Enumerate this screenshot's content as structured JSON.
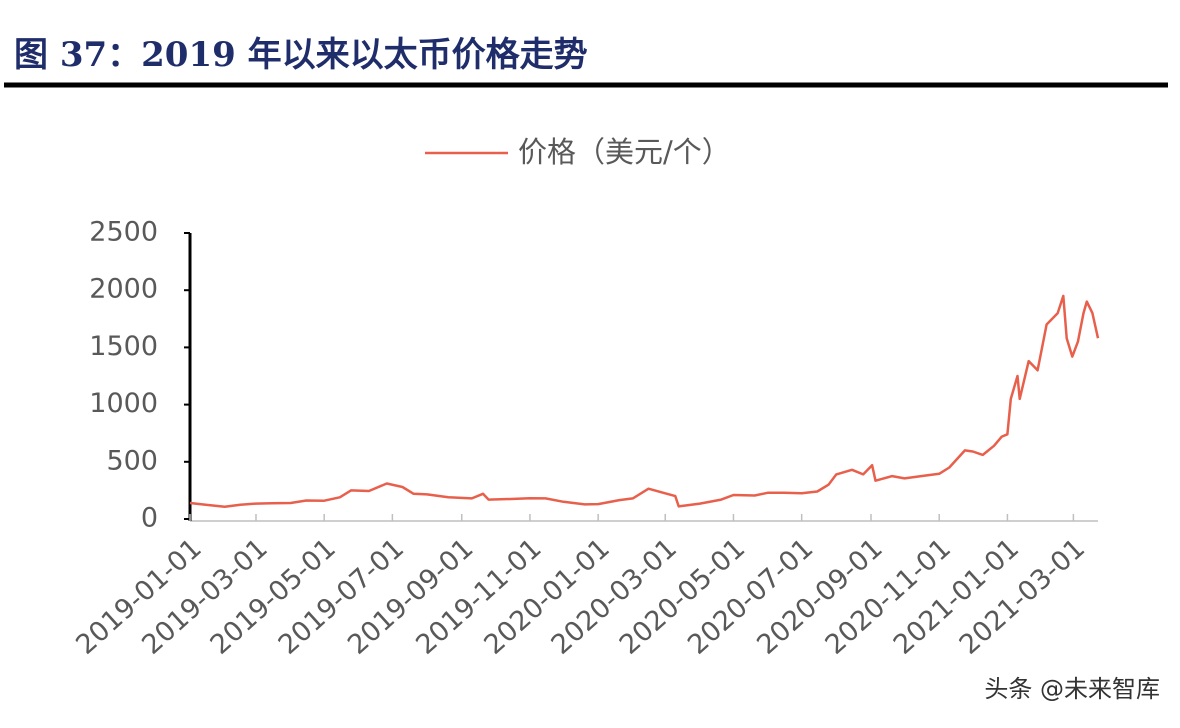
{
  "chart_data": {
    "type": "line",
    "title": "图 37：2019 年以来以太币价格走势",
    "watermark": "头条 @未来智库",
    "x": [
      "2019-01-01",
      "2019-01-15",
      "2019-02-01",
      "2019-02-15",
      "2019-03-01",
      "2019-03-15",
      "2019-04-01",
      "2019-04-15",
      "2019-05-01",
      "2019-05-15",
      "2019-05-25",
      "2019-06-10",
      "2019-06-26",
      "2019-07-10",
      "2019-07-20",
      "2019-08-01",
      "2019-08-20",
      "2019-09-10",
      "2019-09-20",
      "2019-09-25",
      "2019-10-15",
      "2019-11-01",
      "2019-11-15",
      "2019-12-01",
      "2019-12-20",
      "2020-01-01",
      "2020-01-20",
      "2020-02-01",
      "2020-02-15",
      "2020-03-01",
      "2020-03-10",
      "2020-03-13",
      "2020-04-01",
      "2020-04-20",
      "2020-05-01",
      "2020-05-20",
      "2020-06-01",
      "2020-06-15",
      "2020-07-01",
      "2020-07-15",
      "2020-07-25",
      "2020-08-01",
      "2020-08-15",
      "2020-08-25",
      "2020-09-02",
      "2020-09-05",
      "2020-09-20",
      "2020-10-01",
      "2020-10-20",
      "2020-11-01",
      "2020-11-10",
      "2020-11-24",
      "2020-12-01",
      "2020-12-10",
      "2020-12-20",
      "2020-12-27",
      "2021-01-01",
      "2021-01-04",
      "2021-01-10",
      "2021-01-12",
      "2021-01-20",
      "2021-01-28",
      "2021-02-05",
      "2021-02-15",
      "2021-02-20",
      "2021-02-23",
      "2021-02-28",
      "2021-03-05",
      "2021-03-10",
      "2021-03-13",
      "2021-03-18",
      "2021-03-23"
    ],
    "series": [
      {
        "name": "价格（美元/个）",
        "color": "#e8604c",
        "values": [
          140,
          125,
          107,
          125,
          135,
          137,
          140,
          162,
          160,
          190,
          250,
          245,
          310,
          280,
          220,
          215,
          190,
          180,
          220,
          170,
          175,
          182,
          180,
          150,
          128,
          130,
          165,
          180,
          265,
          225,
          200,
          110,
          135,
          170,
          210,
          205,
          230,
          230,
          225,
          240,
          300,
          390,
          430,
          390,
          470,
          335,
          375,
          355,
          380,
          395,
          450,
          600,
          590,
          560,
          640,
          720,
          740,
          1050,
          1250,
          1050,
          1380,
          1300,
          1700,
          1800,
          1950,
          1580,
          1420,
          1550,
          1800,
          1900,
          1800,
          1580
        ]
      }
    ],
    "xlim": [
      "2019-01-01",
      "2021-03-23"
    ],
    "xticks": [
      "2019-01-01",
      "2019-03-01",
      "2019-05-01",
      "2019-07-01",
      "2019-09-01",
      "2019-11-01",
      "2020-01-01",
      "2020-03-01",
      "2020-05-01",
      "2020-07-01",
      "2020-09-01",
      "2020-11-01",
      "2021-01-01",
      "2021-03-01"
    ],
    "ylim": [
      0,
      2500
    ],
    "yticks": [
      0,
      500,
      1000,
      1500,
      2000,
      2500
    ],
    "grid": false
  }
}
